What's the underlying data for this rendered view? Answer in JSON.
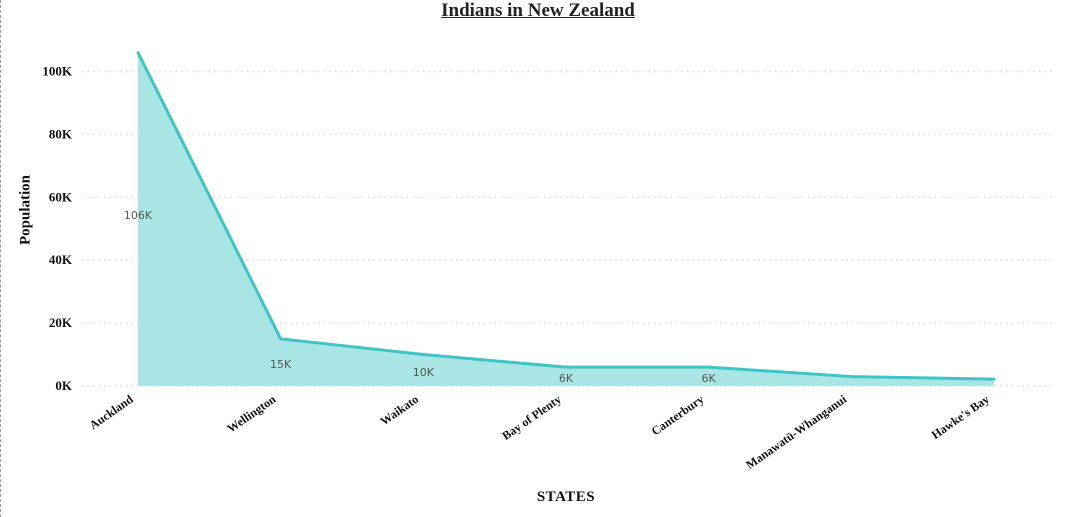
{
  "chart_data": {
    "type": "area",
    "title": "Indians in New Zealand",
    "xlabel": "STATES",
    "ylabel": "Population",
    "categories": [
      "Auckland",
      "Wellington",
      "Waikato",
      "Bay of Plenty",
      "Canterbury",
      "Manawatū-Whanganui",
      "Hawke's Bay"
    ],
    "values": [
      106000,
      15000,
      10000,
      6000,
      6000,
      3000,
      2200
    ],
    "data_labels": [
      "106K",
      "15K",
      "10K",
      "6K",
      "6K",
      "",
      ""
    ],
    "ylim": [
      0,
      110000
    ],
    "yticks": [
      0,
      20000,
      40000,
      60000,
      80000,
      100000
    ],
    "ytick_labels": [
      "0K",
      "20K",
      "40K",
      "60K",
      "80K",
      "100K"
    ],
    "grid": true,
    "colors": {
      "line": "#3ec4c4",
      "fill": "#a9e5e5",
      "grid": "#d9d9d9"
    }
  }
}
